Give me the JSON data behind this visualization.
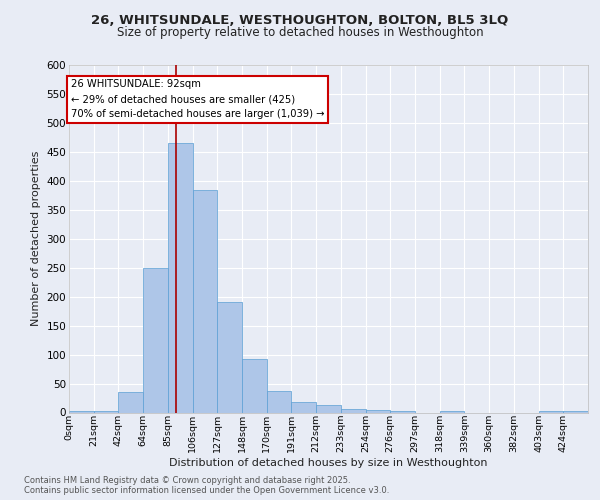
{
  "title1": "26, WHITSUNDALE, WESTHOUGHTON, BOLTON, BL5 3LQ",
  "title2": "Size of property relative to detached houses in Westhoughton",
  "xlabel": "Distribution of detached houses by size in Westhoughton",
  "ylabel": "Number of detached properties",
  "bin_labels": [
    "0sqm",
    "21sqm",
    "42sqm",
    "64sqm",
    "85sqm",
    "106sqm",
    "127sqm",
    "148sqm",
    "170sqm",
    "191sqm",
    "212sqm",
    "233sqm",
    "254sqm",
    "276sqm",
    "297sqm",
    "318sqm",
    "339sqm",
    "360sqm",
    "382sqm",
    "403sqm",
    "424sqm"
  ],
  "bar_heights": [
    3,
    3,
    35,
    250,
    465,
    385,
    190,
    92,
    37,
    18,
    13,
    6,
    5,
    3,
    0,
    3,
    0,
    0,
    0,
    3,
    3
  ],
  "bar_color": "#aec6e8",
  "bar_edge_color": "#5a9fd4",
  "property_sqm": 92,
  "vline_color": "#aa0000",
  "annotation_text": "26 WHITSUNDALE: 92sqm\n← 29% of detached houses are smaller (425)\n70% of semi-detached houses are larger (1,039) →",
  "annotation_box_color": "#ffffff",
  "annotation_box_edge_color": "#cc0000",
  "ylim": [
    0,
    600
  ],
  "yticks": [
    0,
    50,
    100,
    150,
    200,
    250,
    300,
    350,
    400,
    450,
    500,
    550,
    600
  ],
  "background_color": "#e8ecf5",
  "grid_color": "#ffffff",
  "footer_text": "Contains HM Land Registry data © Crown copyright and database right 2025.\nContains public sector information licensed under the Open Government Licence v3.0."
}
